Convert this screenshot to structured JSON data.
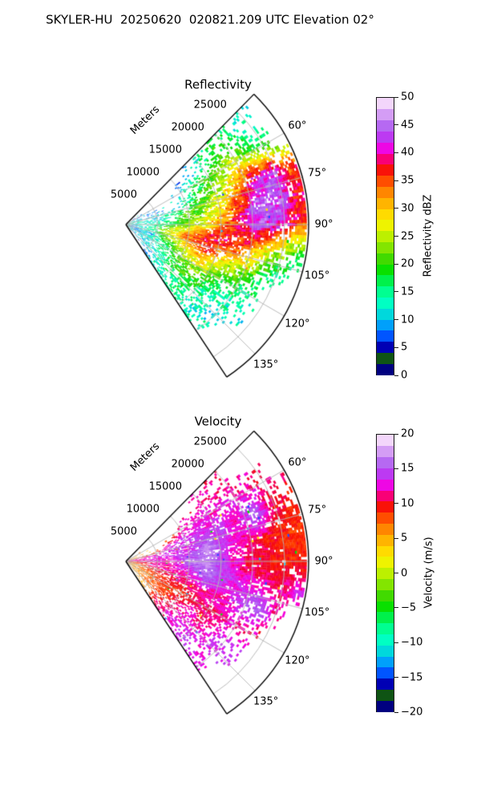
{
  "figure": {
    "title": "SKYLER-HU  20250620  020821.209 UTC Elevation 02°",
    "background": "#ffffff",
    "gridline_color": "#b4b4b4",
    "boundary_color": "#000000"
  },
  "colormap": {
    "name": "gist_ncar-like",
    "stops": [
      [
        0.0,
        "#000080"
      ],
      [
        0.028,
        "#000080"
      ],
      [
        0.04,
        "#0f5414"
      ],
      [
        0.06,
        "#0f5414"
      ],
      [
        0.075,
        "#000087"
      ],
      [
        0.1,
        "#0000b4"
      ],
      [
        0.13,
        "#0041ff"
      ],
      [
        0.175,
        "#0099ff"
      ],
      [
        0.22,
        "#00d8dc"
      ],
      [
        0.26,
        "#00ffc3"
      ],
      [
        0.3,
        "#00ff91"
      ],
      [
        0.34,
        "#00f14b"
      ],
      [
        0.38,
        "#09e000"
      ],
      [
        0.43,
        "#4fd800"
      ],
      [
        0.47,
        "#94e900"
      ],
      [
        0.52,
        "#d7f500"
      ],
      [
        0.555,
        "#fff200"
      ],
      [
        0.6,
        "#ffc900"
      ],
      [
        0.65,
        "#ff9400"
      ],
      [
        0.7,
        "#ff4e00"
      ],
      [
        0.735,
        "#fb1500"
      ],
      [
        0.765,
        "#ef0035"
      ],
      [
        0.788,
        "#ff0098"
      ],
      [
        0.815,
        "#f500e1"
      ],
      [
        0.845,
        "#cb2af2"
      ],
      [
        0.88,
        "#a950f2"
      ],
      [
        0.915,
        "#bf7cf2"
      ],
      [
        0.95,
        "#ddaaf6"
      ],
      [
        0.98,
        "#f3d6fb"
      ],
      [
        1.0,
        "#fdeeff"
      ]
    ]
  },
  "charts": [
    {
      "title": "Reflectivity",
      "radial_axis_label": "Meters",
      "range_tick_labels": [
        "5000",
        "10000",
        "15000",
        "20000",
        "25000"
      ],
      "angle_tick_labels": [
        "60°",
        "75°",
        "90°",
        "105°",
        "120°",
        "135°"
      ],
      "colorbar": {
        "label": "Reflectivity dBZ",
        "tick_labels": [
          "0",
          "5",
          "10",
          "15",
          "20",
          "25",
          "30",
          "35",
          "40",
          "45",
          "50"
        ],
        "vmin": 0,
        "vmax": 50,
        "steps": 25
      }
    },
    {
      "title": "Velocity",
      "radial_axis_label": "Meters",
      "range_tick_labels": [
        "5000",
        "10000",
        "15000",
        "20000",
        "25000"
      ],
      "angle_tick_labels": [
        "60°",
        "75°",
        "90°",
        "105°",
        "120°",
        "135°"
      ],
      "colorbar": {
        "label": "Velocity (m/s)",
        "tick_labels": [
          "−20",
          "−15",
          "−10",
          "−5",
          "0",
          "5",
          "10",
          "15",
          "20"
        ],
        "vmin": -20,
        "vmax": 20,
        "steps": 25
      }
    }
  ],
  "chart_data": [
    {
      "type": "heatmap",
      "geometry": "polar_sector",
      "title": "Reflectivity",
      "units": "dBZ",
      "vmin": 0,
      "vmax": 50,
      "azimuth_deg_span": [
        44.5,
        146.5
      ],
      "azimuth_gridlines_deg": [
        60,
        75,
        90,
        105,
        120,
        135
      ],
      "range_rings_m": [
        5000,
        10000,
        15000,
        20000,
        25000
      ],
      "range_m_max": 28800,
      "azimuth_bin_edges_deg": [
        45,
        55,
        65,
        75,
        85,
        95,
        105,
        115,
        125,
        135,
        145
      ],
      "range_bin_edges_m": [
        0,
        2880,
        5760,
        8640,
        11520,
        14400,
        17280,
        20160,
        23040,
        25920,
        28800
      ],
      "values": [
        [
          null,
          null,
          null,
          null,
          8,
          15,
          18,
          15,
          12,
          null
        ],
        [
          10,
          null,
          null,
          12,
          18,
          22,
          25,
          22,
          18,
          null
        ],
        [
          12,
          8,
          null,
          15,
          20,
          25,
          32,
          40,
          42,
          35
        ],
        [
          14,
          10,
          16,
          20,
          24,
          30,
          38,
          46,
          44,
          38
        ],
        [
          12,
          14,
          18,
          24,
          28,
          34,
          40,
          44,
          42,
          36
        ],
        [
          10,
          16,
          28,
          34,
          38,
          38,
          36,
          30,
          24,
          18
        ],
        [
          8,
          10,
          22,
          30,
          34,
          30,
          26,
          22,
          16,
          null
        ],
        [
          10,
          12,
          16,
          22,
          26,
          22,
          18,
          14,
          null,
          null
        ],
        [
          12,
          10,
          14,
          18,
          20,
          16,
          14,
          12,
          null,
          null
        ],
        [
          null,
          8,
          12,
          14,
          16,
          14,
          12,
          null,
          null,
          null
        ]
      ],
      "coverage": [
        [
          0,
          0,
          0,
          0,
          0.1,
          0.25,
          0.3,
          0.25,
          0.15,
          0
        ],
        [
          0.1,
          0,
          0,
          0.15,
          0.4,
          0.55,
          0.6,
          0.5,
          0.3,
          0
        ],
        [
          0.3,
          0.2,
          0,
          0.3,
          0.6,
          0.7,
          0.85,
          0.9,
          0.9,
          0.6
        ],
        [
          0.4,
          0.3,
          0.4,
          0.7,
          0.8,
          0.9,
          0.95,
          0.95,
          0.95,
          0.8
        ],
        [
          0.5,
          0.4,
          0.6,
          0.8,
          0.85,
          0.9,
          0.95,
          0.95,
          0.9,
          0.85
        ],
        [
          0.4,
          0.4,
          0.6,
          0.8,
          0.9,
          0.9,
          0.85,
          0.8,
          0.7,
          0.5
        ],
        [
          0.4,
          0.5,
          0.5,
          0.7,
          0.8,
          0.8,
          0.7,
          0.6,
          0.3,
          0
        ],
        [
          0.4,
          0.5,
          0.5,
          0.6,
          0.7,
          0.6,
          0.5,
          0.3,
          0,
          0
        ],
        [
          0.3,
          0.4,
          0.4,
          0.5,
          0.5,
          0.45,
          0.4,
          0.25,
          0,
          0
        ],
        [
          0,
          0.2,
          0.3,
          0.4,
          0.45,
          0.35,
          0.25,
          0,
          0,
          0
        ]
      ]
    },
    {
      "type": "heatmap",
      "geometry": "polar_sector",
      "title": "Velocity",
      "units": "m/s",
      "vmin": -20,
      "vmax": 20,
      "azimuth_deg_span": [
        44.5,
        146.5
      ],
      "azimuth_gridlines_deg": [
        60,
        75,
        90,
        105,
        120,
        135
      ],
      "range_rings_m": [
        5000,
        10000,
        15000,
        20000,
        25000
      ],
      "range_m_max": 28800,
      "azimuth_bin_edges_deg": [
        45,
        55,
        65,
        75,
        85,
        95,
        105,
        115,
        125,
        135,
        145
      ],
      "range_bin_edges_m": [
        0,
        2880,
        5760,
        8640,
        11520,
        14400,
        17280,
        20160,
        23040,
        25920,
        28800
      ],
      "values": [
        [
          null,
          null,
          null,
          null,
          11,
          12,
          11,
          null,
          null,
          null
        ],
        [
          5,
          null,
          null,
          12,
          13,
          12,
          13,
          12,
          11,
          null
        ],
        [
          6,
          null,
          13,
          14,
          13,
          14,
          12,
          16,
          11,
          9
        ],
        [
          12,
          13,
          14,
          13,
          17,
          14,
          12,
          11,
          9,
          9
        ],
        [
          11,
          12,
          12,
          16,
          17,
          13,
          11,
          10,
          9,
          9
        ],
        [
          7,
          11,
          12,
          13,
          16,
          14,
          13,
          12,
          11,
          13
        ],
        [
          6,
          9,
          10,
          11,
          12,
          12,
          14,
          16,
          12,
          null
        ],
        [
          6,
          7,
          9,
          9,
          11,
          11,
          12,
          11,
          null,
          null
        ],
        [
          5,
          8,
          8,
          11,
          12,
          11,
          14,
          14,
          null,
          null
        ],
        [
          null,
          5,
          10,
          12,
          13,
          14,
          13,
          null,
          null,
          null
        ]
      ],
      "coverage": [
        [
          0,
          0,
          0,
          0,
          0.1,
          0.2,
          0.2,
          0,
          0,
          0
        ],
        [
          0.1,
          0,
          0,
          0.25,
          0.45,
          0.55,
          0.5,
          0.45,
          0.3,
          0
        ],
        [
          0.3,
          0,
          0.3,
          0.6,
          0.7,
          0.8,
          0.85,
          0.9,
          0.9,
          0.7
        ],
        [
          0.5,
          0.4,
          0.6,
          0.8,
          0.85,
          0.9,
          0.95,
          0.95,
          0.95,
          0.85
        ],
        [
          0.5,
          0.5,
          0.7,
          0.85,
          0.9,
          0.9,
          0.9,
          0.95,
          0.9,
          0.85
        ],
        [
          0.5,
          0.5,
          0.7,
          0.85,
          0.9,
          0.9,
          0.85,
          0.8,
          0.7,
          0.5
        ],
        [
          0.5,
          0.6,
          0.6,
          0.75,
          0.85,
          0.8,
          0.7,
          0.6,
          0.3,
          0
        ],
        [
          0.5,
          0.6,
          0.6,
          0.65,
          0.7,
          0.6,
          0.5,
          0.3,
          0,
          0
        ],
        [
          0.4,
          0.5,
          0.45,
          0.55,
          0.55,
          0.5,
          0.45,
          0.3,
          0,
          0
        ],
        [
          0,
          0.2,
          0.3,
          0.45,
          0.5,
          0.4,
          0.3,
          0,
          0,
          0
        ]
      ]
    }
  ]
}
